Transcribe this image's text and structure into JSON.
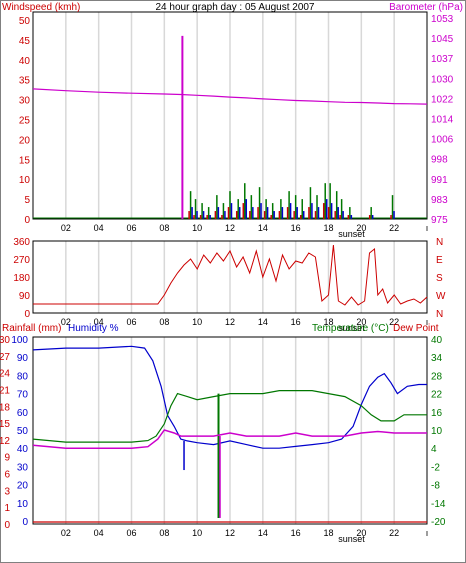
{
  "colors": {
    "wind": "#cc0000",
    "baro": "#cc00cc",
    "grid": "#d8d8d8",
    "temp": "#007700",
    "dew": "#0000cc",
    "humidity": "#0000cc",
    "rain": "#cc0000",
    "frame": "#000000"
  },
  "chart_data": [
    {
      "type": "line",
      "name": "wind-barometer",
      "title": "24 hour graph day : 05 August 2007",
      "left_axis_label": "Windspeed (kmh)",
      "right_axis_label": "Barometer (hPa)",
      "left_ticks": [
        "0",
        "5",
        "10",
        "15",
        "20",
        "25",
        "30",
        "35",
        "40",
        "45",
        "50"
      ],
      "right_ticks": [
        "975",
        "983",
        "991",
        "998",
        "1006",
        "1014",
        "1022",
        "1030",
        "1037",
        "1045",
        "1053"
      ],
      "ylim_left": [
        0,
        52
      ],
      "ylim_right": [
        975,
        1055
      ],
      "x_ticks": [
        "02",
        "04",
        "06",
        "08",
        "10",
        "12",
        "14",
        "16",
        "18",
        "sunset",
        "20",
        "22",
        "ı"
      ],
      "barometer": {
        "x": [
          0,
          2,
          4,
          6,
          8,
          9,
          10,
          11,
          12,
          13,
          14,
          15,
          16,
          17,
          18,
          19,
          20,
          21,
          22,
          23,
          24
        ],
        "y": [
          1025.5,
          1024.8,
          1024.2,
          1023.8,
          1023.5,
          1023.3,
          1023,
          1022.7,
          1022.3,
          1022,
          1021.6,
          1021.3,
          1021,
          1020.8,
          1020.5,
          1020.3,
          1020.2,
          1020,
          1019.8,
          1019.7,
          1019.6
        ]
      },
      "gust_spike": {
        "x": 9.1,
        "y": 46
      },
      "wind_bursts": [
        {
          "x": 9.6,
          "wind": 3,
          "gust": 7
        },
        {
          "x": 9.9,
          "wind": 2,
          "gust": 5
        },
        {
          "x": 10.3,
          "wind": 2,
          "gust": 4
        },
        {
          "x": 10.7,
          "wind": 1,
          "gust": 3
        },
        {
          "x": 11.2,
          "wind": 3,
          "gust": 6
        },
        {
          "x": 11.6,
          "wind": 2,
          "gust": 4
        },
        {
          "x": 12.0,
          "wind": 4,
          "gust": 7
        },
        {
          "x": 12.5,
          "wind": 3,
          "gust": 5
        },
        {
          "x": 12.9,
          "wind": 5,
          "gust": 9
        },
        {
          "x": 13.3,
          "wind": 3,
          "gust": 6
        },
        {
          "x": 13.8,
          "wind": 4,
          "gust": 8
        },
        {
          "x": 14.2,
          "wind": 3,
          "gust": 5
        },
        {
          "x": 14.6,
          "wind": 2,
          "gust": 4
        },
        {
          "x": 15.1,
          "wind": 3,
          "gust": 5
        },
        {
          "x": 15.6,
          "wind": 4,
          "gust": 7
        },
        {
          "x": 16.0,
          "wind": 3,
          "gust": 6
        },
        {
          "x": 16.4,
          "wind": 2,
          "gust": 5
        },
        {
          "x": 16.9,
          "wind": 4,
          "gust": 8
        },
        {
          "x": 17.3,
          "wind": 3,
          "gust": 6
        },
        {
          "x": 17.8,
          "wind": 5,
          "gust": 9
        },
        {
          "x": 18.1,
          "wind": 4,
          "gust": 9
        },
        {
          "x": 18.5,
          "wind": 3,
          "gust": 7
        },
        {
          "x": 18.8,
          "wind": 2,
          "gust": 5
        },
        {
          "x": 19.3,
          "wind": 1,
          "gust": 3
        },
        {
          "x": 20.6,
          "wind": 1,
          "gust": 3
        },
        {
          "x": 21.9,
          "wind": 2,
          "gust": 6
        }
      ]
    },
    {
      "type": "line",
      "name": "wind-direction",
      "left_ticks": [
        "0",
        "90",
        "180",
        "270",
        "360"
      ],
      "right_ticks": [
        "N",
        "W",
        "S",
        "E",
        "N"
      ],
      "ylim": [
        0,
        360
      ],
      "x_ticks": [
        "02",
        "04",
        "06",
        "08",
        "10",
        "12",
        "14",
        "16",
        "18",
        "sunset",
        "20",
        "22",
        "ı"
      ],
      "direction": {
        "x": [
          0,
          7.6,
          8.0,
          8.4,
          8.8,
          9.2,
          9.6,
          10.0,
          10.4,
          10.8,
          11.2,
          11.6,
          12.0,
          12.4,
          12.8,
          13.2,
          13.6,
          14.0,
          14.4,
          14.8,
          15.2,
          15.6,
          16.0,
          16.4,
          16.8,
          17.2,
          17.6,
          18.0,
          18.3,
          18.6,
          19.0,
          19.4,
          19.8,
          20.2,
          20.5,
          20.8,
          21.0,
          21.3,
          21.6,
          22.0,
          22.4,
          22.8,
          23.2,
          23.6,
          24
        ],
        "y": [
          45,
          45,
          90,
          150,
          200,
          240,
          270,
          220,
          290,
          250,
          300,
          260,
          310,
          230,
          280,
          200,
          310,
          180,
          270,
          160,
          290,
          220,
          260,
          250,
          300,
          280,
          60,
          90,
          340,
          60,
          40,
          80,
          40,
          60,
          300,
          320,
          90,
          120,
          50,
          90,
          45,
          60,
          70,
          50,
          80
        ]
      }
    },
    {
      "type": "line",
      "name": "temp-humidity-rain",
      "labels": [
        "Rainfall (mm)",
        "Humidity %",
        "Temperature (°C)",
        "Dew Point"
      ],
      "left_outer_ticks": [
        "0",
        "1",
        "3",
        "6",
        "9",
        "12",
        "15",
        "18",
        "21",
        "24",
        "27",
        "30"
      ],
      "left_inner_ticks": [
        "0",
        "10",
        "20",
        "30",
        "40",
        "50",
        "60",
        "70",
        "80",
        "90",
        "100"
      ],
      "right_ticks": [
        "-20",
        "-14",
        "-8",
        "-2",
        "4",
        "10",
        "16",
        "22",
        "28",
        "34",
        "40"
      ],
      "humidity_lim": [
        0,
        100
      ],
      "temp_lim": [
        -20,
        40
      ],
      "x_ticks": [
        "02",
        "04",
        "06",
        "08",
        "10",
        "12",
        "14",
        "16",
        "18",
        "sunset",
        "20",
        "22",
        "ı"
      ],
      "humidity": {
        "x": [
          0,
          2,
          4,
          6,
          6.8,
          7.3,
          7.8,
          8.2,
          8.6,
          9.0,
          9.4,
          10.0,
          11.0,
          12.0,
          13.0,
          14.0,
          15.0,
          16.0,
          17.0,
          18.0,
          18.8,
          19.5,
          20.0,
          20.5,
          21.0,
          21.4,
          21.8,
          22.2,
          22.8,
          23.5,
          24
        ],
        "y": [
          94,
          95,
          95,
          96,
          95,
          88,
          74,
          58,
          52,
          45,
          44,
          43,
          42,
          44,
          42,
          40,
          40,
          41,
          42,
          43,
          45,
          52,
          64,
          74,
          79,
          81,
          76,
          70,
          74,
          75,
          75
        ]
      },
      "temperature": {
        "x": [
          0,
          2,
          4,
          6,
          7.0,
          7.5,
          8.0,
          8.4,
          8.8,
          9.4,
          10.0,
          11.0,
          12.0,
          13.0,
          14.0,
          15.0,
          16.0,
          17.0,
          18.0,
          19.0,
          20.0,
          20.6,
          21.2,
          22.0,
          22.6,
          23.2,
          24
        ],
        "y": [
          7,
          6,
          6,
          6,
          6.5,
          8,
          12,
          18,
          22,
          21,
          20,
          21,
          22,
          22,
          22,
          23,
          23,
          23,
          22,
          21,
          18,
          15,
          13,
          13,
          15,
          15,
          15
        ]
      },
      "temp_spike": {
        "x": 11.3,
        "y_top": 22,
        "y_bottom": -19
      },
      "dewpoint": {
        "x": [
          0,
          2,
          4,
          6,
          7.0,
          7.6,
          8.0,
          8.6,
          9.0,
          10.0,
          11.0,
          12.0,
          13.0,
          14.0,
          15.0,
          16.0,
          17.0,
          18.0,
          19.0,
          20.0,
          21.0,
          22.0,
          23.0,
          24
        ],
        "y": [
          5,
          4,
          4,
          4,
          4.5,
          7,
          10,
          9,
          8,
          8,
          8,
          9,
          8,
          8,
          8,
          9,
          8,
          8,
          8,
          9,
          9.5,
          9,
          9,
          9
        ]
      },
      "dew_spike": {
        "x": 11.3,
        "y_top": 8,
        "y_bottom": -19
      },
      "humidity_dip": {
        "x": 9.2,
        "y": 28
      },
      "rainfall": {
        "x": [
          0,
          24
        ],
        "y": [
          0,
          0
        ]
      }
    }
  ]
}
